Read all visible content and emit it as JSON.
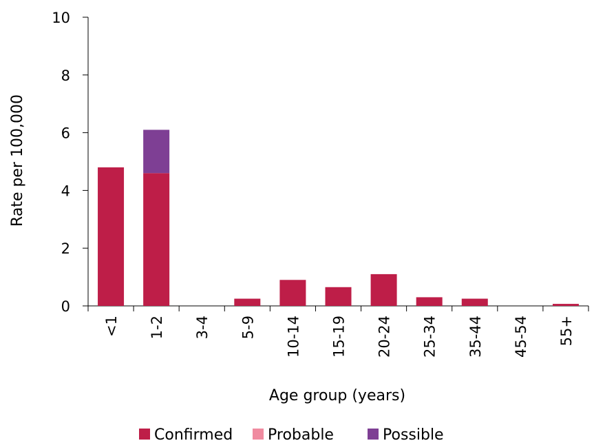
{
  "chart_data": {
    "type": "bar",
    "stacked": true,
    "categories": [
      "<1",
      "1-2",
      "3-4",
      "5-9",
      "10-14",
      "15-19",
      "20-24",
      "25-34",
      "35-44",
      "45-54",
      "55+"
    ],
    "series": [
      {
        "name": "Confirmed",
        "color": "#BE1E48",
        "values": [
          4.8,
          4.6,
          0,
          0.25,
          0.9,
          0.65,
          1.1,
          0.3,
          0.25,
          0,
          0.07
        ]
      },
      {
        "name": "Probable",
        "color": "#F08BA0",
        "values": [
          0,
          0,
          0,
          0,
          0,
          0,
          0,
          0,
          0,
          0,
          0
        ]
      },
      {
        "name": "Possible",
        "color": "#7E3F94",
        "values": [
          0,
          1.5,
          0,
          0,
          0,
          0,
          0,
          0,
          0,
          0,
          0
        ]
      }
    ],
    "xlabel": "Age group (years)",
    "ylabel": "Rate per 100,000",
    "ylim": [
      0,
      10
    ],
    "yticks": [
      "0",
      "2",
      "4",
      "6",
      "8",
      "10"
    ],
    "grid": false,
    "legend_position": "bottom"
  }
}
